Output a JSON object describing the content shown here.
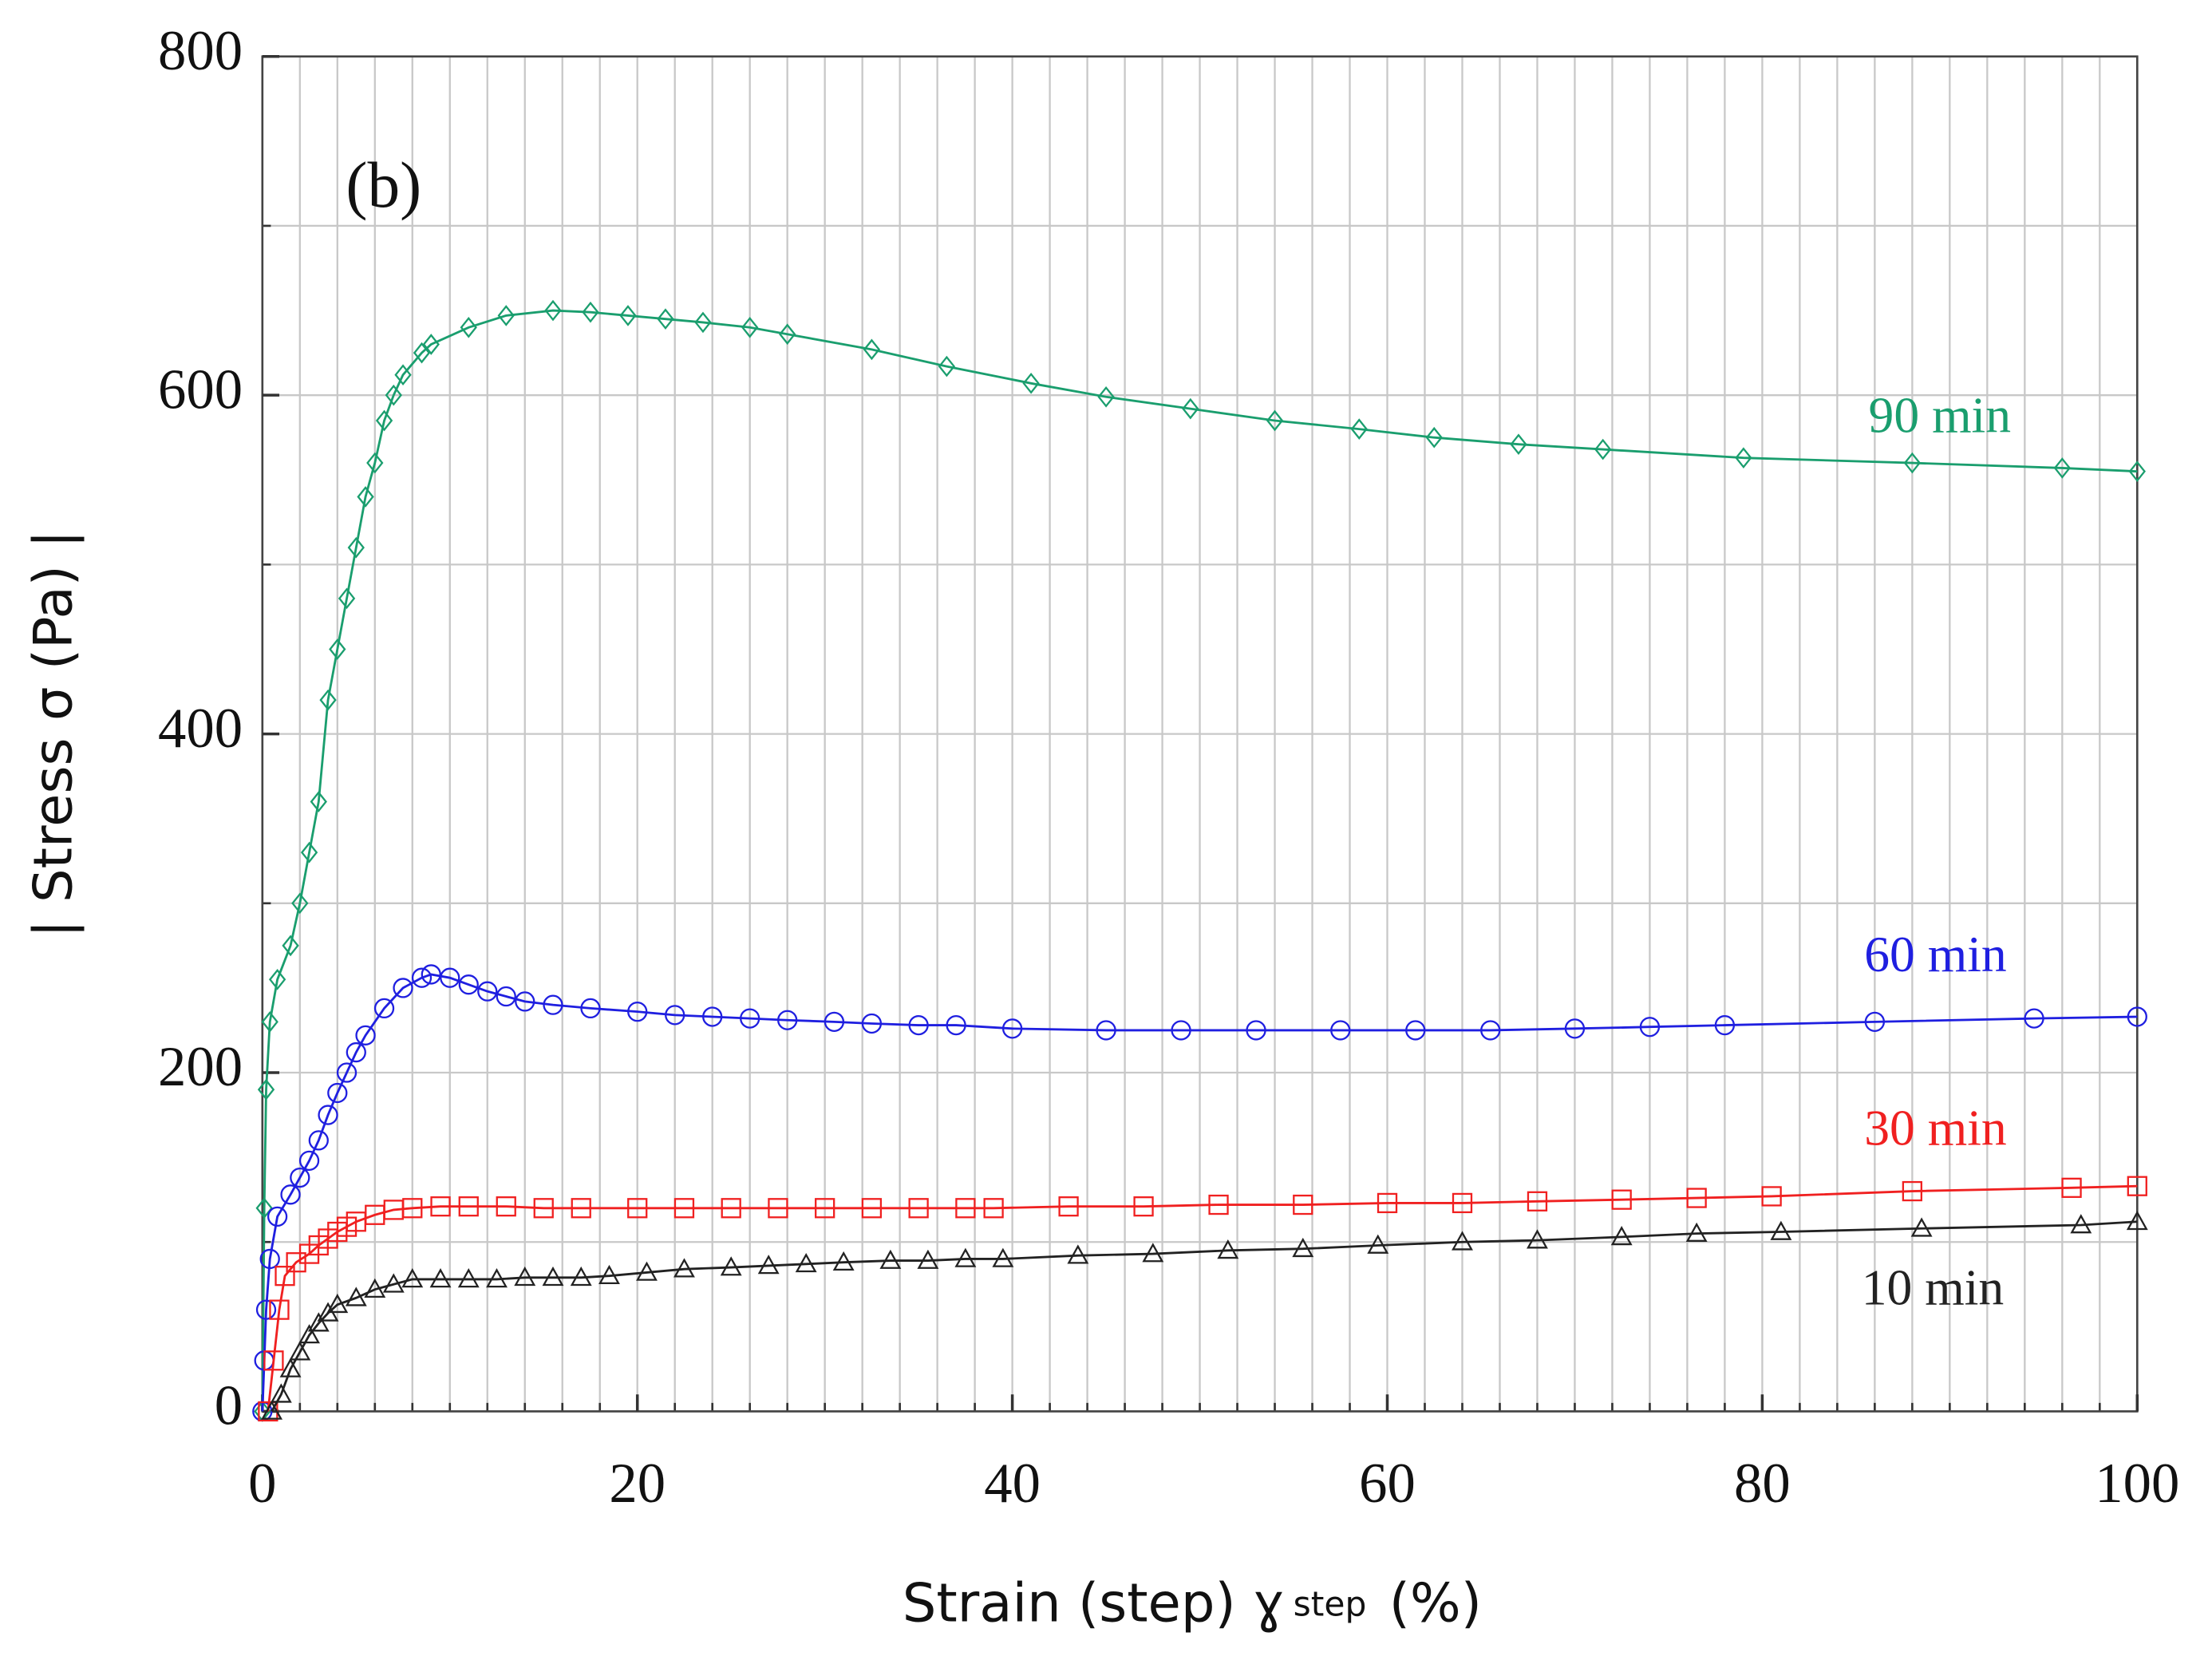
{
  "chart_data": {
    "type": "line",
    "annotation": "(b)",
    "x_label": "Strain (step) ɣ",
    "x_label_sub": "step",
    "x_label_unit": "(%)",
    "y_label": "| Stress σ (Pa) |",
    "xlim": [
      0,
      100
    ],
    "ylim": [
      0,
      800
    ],
    "xticks": [
      0,
      20,
      40,
      60,
      80,
      100
    ],
    "yticks": [
      0,
      200,
      400,
      600,
      800
    ],
    "xgrid": [
      0,
      2,
      4,
      6,
      8,
      10,
      12,
      14,
      16,
      18,
      20,
      22,
      24,
      26,
      28,
      30,
      32,
      34,
      36,
      38,
      40,
      42,
      44,
      46,
      48,
      50,
      52,
      54,
      56,
      58,
      60,
      62,
      64,
      66,
      68,
      70,
      72,
      74,
      76,
      78,
      80,
      82,
      84,
      86,
      88,
      90,
      92,
      94,
      96,
      98,
      100
    ],
    "ygrid": [
      0,
      100,
      200,
      300,
      400,
      500,
      600,
      700,
      800
    ],
    "grid": true,
    "series": [
      {
        "name": "90 min",
        "color": "#1a9e6e",
        "marker": "diamond",
        "x": [
          0,
          0.1,
          0.2,
          0.4,
          0.8,
          1.5,
          2,
          2.5,
          3,
          3.5,
          4,
          4.5,
          5,
          5.5,
          6,
          6.5,
          7,
          7.5,
          8.5,
          9,
          11,
          13,
          15.5,
          17.5,
          19.5,
          21.5,
          23.5,
          26,
          28,
          32.5,
          36.5,
          41,
          45,
          49.5,
          54,
          58.5,
          62.5,
          67,
          71.5,
          79,
          88,
          96,
          100
        ],
        "values": [
          0,
          120,
          190,
          230,
          255,
          275,
          300,
          330,
          360,
          420,
          450,
          480,
          510,
          540,
          560,
          585,
          600,
          612,
          625,
          630,
          640,
          647,
          650,
          649,
          647,
          645,
          643,
          640,
          636,
          627,
          617,
          607,
          599,
          592,
          585,
          580,
          575,
          571,
          568,
          563,
          560,
          557,
          555
        ]
      },
      {
        "name": "60 min",
        "color": "#1f1fe0",
        "marker": "circle",
        "x": [
          0,
          0.1,
          0.2,
          0.4,
          0.8,
          1.5,
          2,
          2.5,
          3,
          3.5,
          4,
          4.5,
          5,
          5.5,
          6.5,
          7.5,
          8.5,
          9,
          10,
          11,
          12,
          13,
          14,
          15.5,
          17.5,
          20,
          22,
          24,
          26,
          28,
          30.5,
          32.5,
          35,
          37,
          40,
          45,
          49,
          53,
          57.5,
          61.5,
          65.5,
          70,
          74,
          78,
          86,
          94.5,
          100
        ],
        "values": [
          0,
          30,
          60,
          90,
          115,
          128,
          138,
          148,
          160,
          175,
          188,
          200,
          212,
          222,
          238,
          250,
          256,
          258,
          256,
          252,
          248,
          245,
          242,
          240,
          238,
          236,
          234,
          233,
          232,
          231,
          230,
          229,
          228,
          228,
          226,
          225,
          225,
          225,
          225,
          225,
          225,
          226,
          227,
          228,
          230,
          232,
          233
        ]
      },
      {
        "name": "30 min",
        "color": "#f02020",
        "marker": "square",
        "x": [
          0.3,
          0.6,
          0.9,
          1.2,
          1.8,
          2.5,
          3,
          3.5,
          4,
          4.5,
          5,
          6,
          7,
          8,
          9.5,
          11,
          13,
          15,
          17,
          20,
          22.5,
          25,
          27.5,
          30,
          32.5,
          35,
          37.5,
          39,
          43,
          47,
          51,
          55.5,
          60,
          64,
          68,
          72.5,
          76.5,
          80.5,
          88,
          96.5,
          100
        ],
        "values": [
          0,
          30,
          60,
          80,
          88,
          93,
          98,
          102,
          106,
          109,
          112,
          116,
          119,
          120,
          121,
          121,
          121,
          120,
          120,
          120,
          120,
          120,
          120,
          120,
          120,
          120,
          120,
          120,
          121,
          121,
          122,
          122,
          123,
          123,
          124,
          125,
          126,
          127,
          130,
          132,
          133
        ]
      },
      {
        "name": "10 min",
        "color": "#222222",
        "marker": "triangle",
        "x": [
          0.5,
          1,
          1.5,
          2,
          2.5,
          3,
          3.5,
          4,
          5,
          6,
          7,
          8,
          9.5,
          11,
          12.5,
          14,
          15.5,
          17,
          18.5,
          20.5,
          22.5,
          25,
          27,
          29,
          31,
          33.5,
          35.5,
          37.5,
          39.5,
          43.5,
          47.5,
          51.5,
          55.5,
          59.5,
          64,
          68,
          72.5,
          76.5,
          81,
          88.5,
          97,
          100
        ],
        "values": [
          0,
          10,
          25,
          35,
          45,
          52,
          58,
          63,
          67,
          72,
          75,
          78,
          78,
          78,
          78,
          79,
          79,
          79,
          80,
          82,
          84,
          85,
          86,
          87,
          88,
          89,
          89,
          90,
          90,
          92,
          93,
          95,
          96,
          98,
          100,
          101,
          103,
          105,
          106,
          108,
          110,
          112
        ]
      }
    ]
  }
}
